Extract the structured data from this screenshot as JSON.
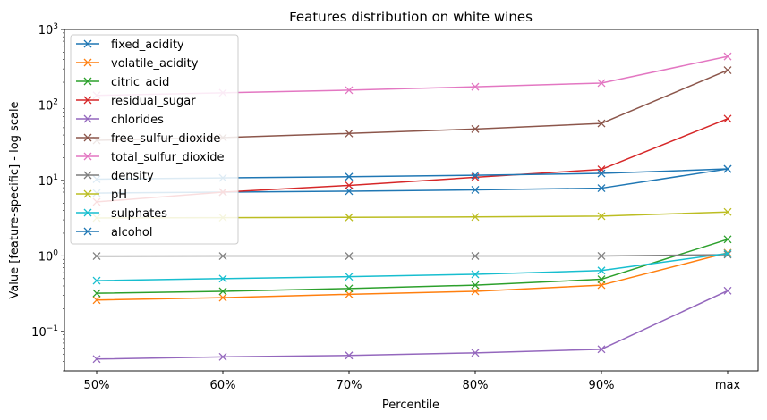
{
  "chart_data": {
    "type": "line",
    "title": "Features distribution on white wines",
    "xlabel": "Percentile",
    "ylabel": "Value [feature-specific] - log scale",
    "yscale": "log",
    "ylim": [
      0.03,
      1000
    ],
    "grid": false,
    "legend_position": "top-left",
    "marker": "x",
    "categories": [
      "50%",
      "60%",
      "70%",
      "80%",
      "90%",
      "max"
    ],
    "yticks": [
      {
        "value": 0.1,
        "base": "10",
        "exp": "−1"
      },
      {
        "value": 1,
        "base": "10",
        "exp": "0"
      },
      {
        "value": 10,
        "base": "10",
        "exp": "1"
      },
      {
        "value": 100,
        "base": "10",
        "exp": "2"
      },
      {
        "value": 1000,
        "base": "10",
        "exp": "3"
      }
    ],
    "series": [
      {
        "name": "fixed_acidity",
        "color": "#1f77b4",
        "values": [
          6.8,
          7.0,
          7.2,
          7.5,
          7.9,
          14.2
        ]
      },
      {
        "name": "volatile_acidity",
        "color": "#ff7f0e",
        "values": [
          0.26,
          0.28,
          0.31,
          0.34,
          0.41,
          1.1
        ]
      },
      {
        "name": "citric_acid",
        "color": "#2ca02c",
        "values": [
          0.32,
          0.34,
          0.37,
          0.41,
          0.49,
          1.66
        ]
      },
      {
        "name": "residual_sugar",
        "color": "#d62728",
        "values": [
          5.2,
          7.0,
          8.6,
          11.0,
          14.0,
          65.8
        ]
      },
      {
        "name": "chlorides",
        "color": "#9467bd",
        "values": [
          0.043,
          0.046,
          0.048,
          0.052,
          0.058,
          0.346
        ]
      },
      {
        "name": "free_sulfur_dioxide",
        "color": "#8c564b",
        "values": [
          34,
          37,
          42,
          48,
          57,
          289
        ]
      },
      {
        "name": "total_sulfur_dioxide",
        "color": "#e377c2",
        "values": [
          134,
          145,
          157,
          174,
          195,
          440
        ]
      },
      {
        "name": "density",
        "color": "#7f7f7f",
        "values": [
          0.994,
          0.995,
          0.996,
          0.997,
          0.998,
          1.039
        ]
      },
      {
        "name": "pH",
        "color": "#bcbd22",
        "values": [
          3.18,
          3.21,
          3.24,
          3.28,
          3.36,
          3.82
        ]
      },
      {
        "name": "sulphates",
        "color": "#17becf",
        "values": [
          0.47,
          0.5,
          0.53,
          0.57,
          0.64,
          1.08
        ]
      },
      {
        "name": "alcohol",
        "color": "#1f77b4",
        "values": [
          10.4,
          10.8,
          11.2,
          11.7,
          12.4,
          14.2
        ]
      }
    ]
  }
}
